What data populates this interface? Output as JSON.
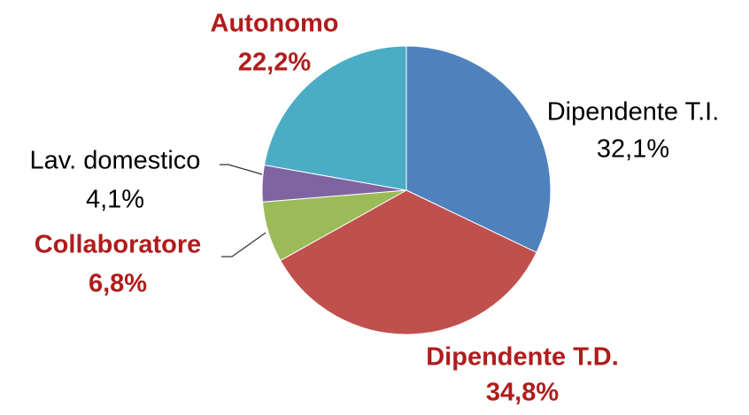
{
  "chart_data": {
    "type": "pie",
    "categories": [
      "Dipendente T.I.",
      "Dipendente T.D.",
      "Collaboratore",
      "Lav. domestico",
      "Autonomo"
    ],
    "values": [
      32.1,
      34.8,
      6.8,
      4.1,
      22.2
    ],
    "value_labels": [
      "32,1%",
      "34,8%",
      "6,8%",
      "4,1%",
      "22,2%"
    ],
    "colors": [
      "#4f81bd",
      "#c0504d",
      "#9bbb59",
      "#8064a2",
      "#4bacc6"
    ],
    "label_colors": [
      "#000000",
      "#b01c1c",
      "#b01c1c",
      "#000000",
      "#b01c1c"
    ],
    "label_weights": [
      "normal",
      "bold",
      "bold",
      "normal",
      "bold"
    ]
  }
}
